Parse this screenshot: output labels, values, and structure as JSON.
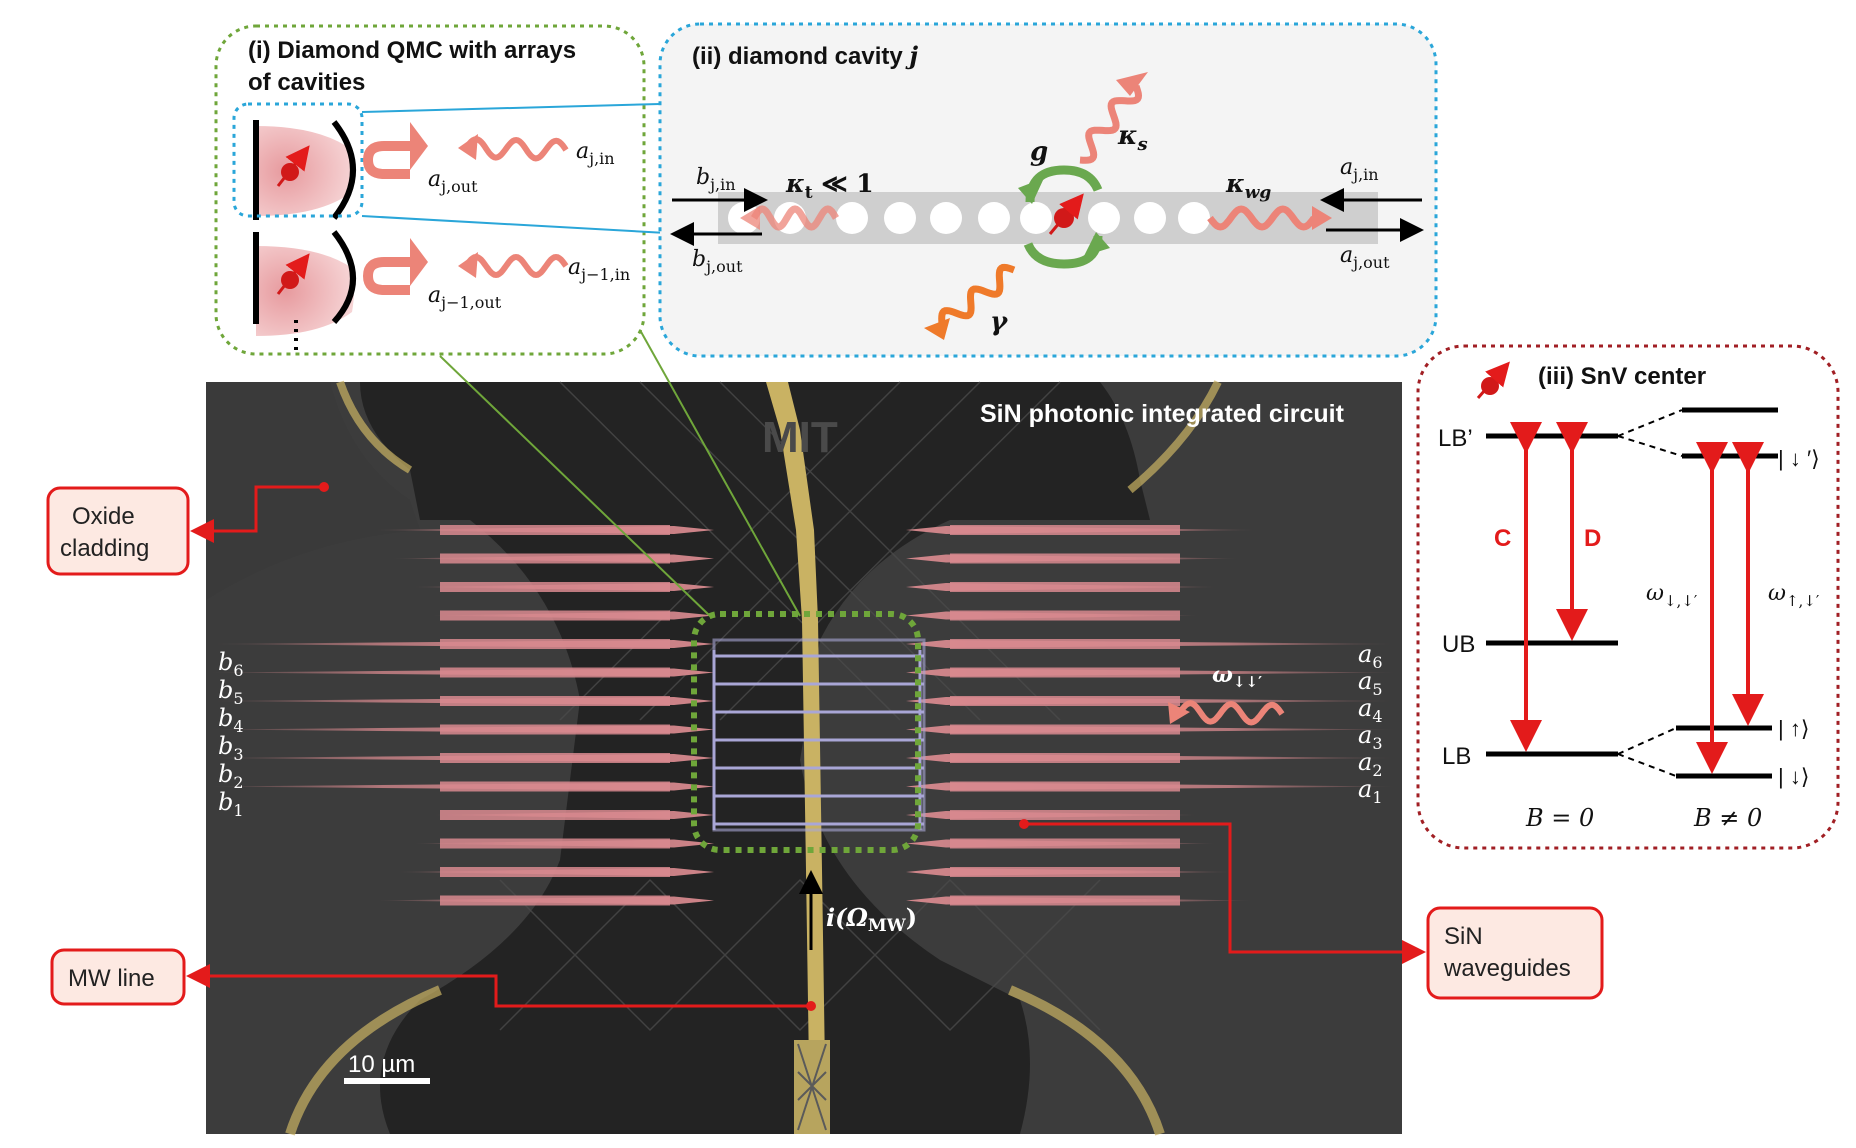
{
  "colors": {
    "chip_bg": "#3c3c3c",
    "chip_dark": "#232323",
    "gold": "#c9b263",
    "waveguide_pink": "#d98a8f",
    "qmc_border": "#6fa63a",
    "cavity_border": "#2aa6d9",
    "snv_border": "#a11f24",
    "label_red": "#e31b1b",
    "label_fill": "#fde9e2",
    "grid_lilac": "#a9a6d6",
    "wavy_pink": "#ec8478",
    "wavy_orange": "#ef7a2a",
    "green_arrow": "#6aa84f"
  },
  "chip": {
    "title": "SiN photonic integrated circuit",
    "scale_bar": "10 µm",
    "drive_label": "i(Ω",
    "drive_sub": "MW",
    "drive_close": ")",
    "omega_label": "ω",
    "omega_sub": "↓↓′",
    "b_labels": [
      {
        "base": "b",
        "sub": "6"
      },
      {
        "base": "b",
        "sub": "5"
      },
      {
        "base": "b",
        "sub": "4"
      },
      {
        "base": "b",
        "sub": "3"
      },
      {
        "base": "b",
        "sub": "2"
      },
      {
        "base": "b",
        "sub": "1"
      }
    ],
    "a_labels": [
      {
        "base": "a",
        "sub": "6"
      },
      {
        "base": "a",
        "sub": "5"
      },
      {
        "base": "a",
        "sub": "4"
      },
      {
        "base": "a",
        "sub": "3"
      },
      {
        "base": "a",
        "sub": "2"
      },
      {
        "base": "a",
        "sub": "1"
      }
    ]
  },
  "callouts": {
    "oxide_line1": "Oxide",
    "oxide_line2": "cladding",
    "mw_line": "MW line",
    "sin_line1": "SiN",
    "sin_line2": "waveguides"
  },
  "panel_i": {
    "title_line1": "(i) Diamond QMC with arrays",
    "title_line2": "of cavities",
    "out1": {
      "base": "a",
      "sub": "j,out"
    },
    "in1": {
      "base": "a",
      "sub": "j,in"
    },
    "out2": {
      "base": "a",
      "sub": "j−1,out"
    },
    "in2": {
      "base": "a",
      "sub": "j−1,in"
    }
  },
  "panel_ii": {
    "title_text": "(ii) diamond cavity ",
    "title_j": "j",
    "b_in": {
      "base": "b",
      "sub": "j,in"
    },
    "b_out": {
      "base": "b",
      "sub": "j,out"
    },
    "a_in": {
      "base": "a",
      "sub": "j,in"
    },
    "a_out": {
      "base": "a",
      "sub": "j,out"
    },
    "kappa_t": {
      "base": "κ",
      "sub": "t",
      "tail": " ≪ 1"
    },
    "kappa_s": {
      "base": "κ",
      "sub": "s"
    },
    "kappa_wg": {
      "base": "κ",
      "sub": "wg"
    },
    "g": "g",
    "gamma": "γ"
  },
  "panel_iii": {
    "title": "(iii) SnV center",
    "lb_prime": "LB’",
    "ub": "UB",
    "lb": "LB",
    "c": "C",
    "d": "D",
    "ket_down_prime": "| ↓ ′⟩",
    "ket_up": "| ↑⟩",
    "ket_down": "| ↓⟩",
    "omega1": {
      "base": "ω",
      "sub": "↓,↓′"
    },
    "omega2": {
      "base": "ω",
      "sub": "↑,↓′"
    },
    "b_zero": "B = 0",
    "b_nonzero": "B ≠ 0"
  }
}
